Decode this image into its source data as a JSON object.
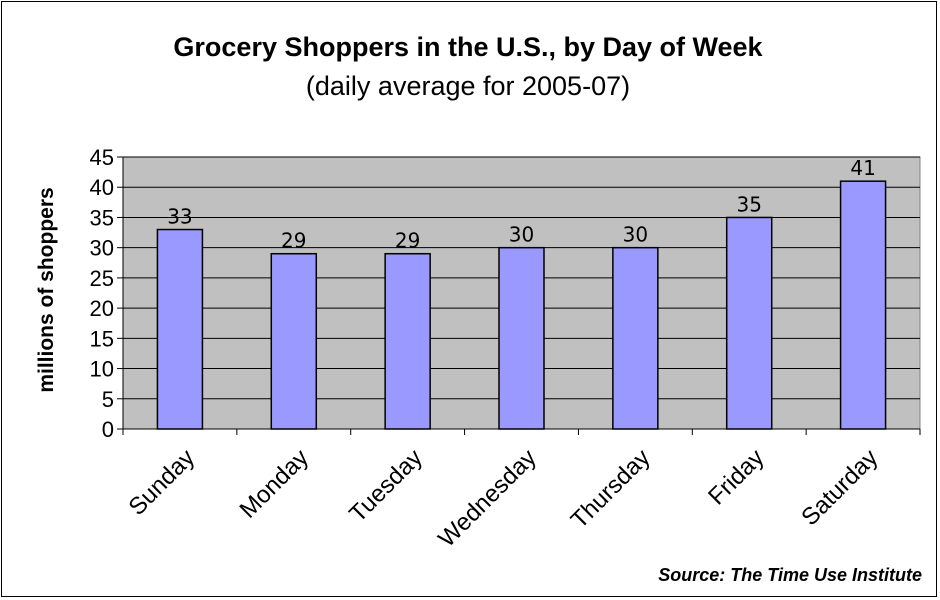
{
  "chart_data": {
    "type": "bar",
    "title": "Grocery Shoppers in the U.S., by Day of Week",
    "subtitle": "(daily average for 2005-07)",
    "ylabel": "millions of shoppers",
    "xlabel": "",
    "categories": [
      "Sunday",
      "Monday",
      "Tuesday",
      "Wednesday",
      "Thursday",
      "Friday",
      "Saturday"
    ],
    "values": [
      33,
      29,
      29,
      30,
      30,
      35,
      41
    ],
    "data_labels": [
      "33",
      "29",
      "29",
      "30",
      "30",
      "35",
      "41"
    ],
    "ylim": [
      0,
      45
    ],
    "yticks": [
      0,
      5,
      10,
      15,
      20,
      25,
      30,
      35,
      40,
      45
    ],
    "grid": true,
    "legend": "none",
    "colors": {
      "bar_fill": "#9999FF",
      "plot_background": "#C0C0C0",
      "gridline": "#000000"
    },
    "source": "Source: The Time Use Institute"
  }
}
